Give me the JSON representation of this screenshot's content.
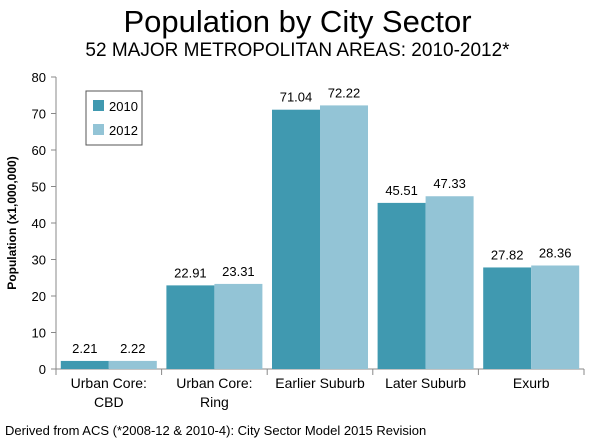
{
  "chart_data": {
    "type": "bar",
    "title": "Population by City Sector",
    "subtitle": "52 MAJOR METROPOLITAN AREAS: 2010-2012*",
    "ylabel": "Population (x1,000,000)",
    "xlabel": "",
    "categories": [
      [
        "Urban Core:",
        "CBD"
      ],
      [
        "Urban Core:",
        "Ring"
      ],
      [
        "Earlier Suburb"
      ],
      [
        "Later Suburb"
      ],
      [
        "Exurb"
      ]
    ],
    "series": [
      {
        "name": "2010",
        "color": "#4099B0",
        "values": [
          2.21,
          22.91,
          71.04,
          45.51,
          27.82
        ],
        "labels": [
          "2.21",
          "22.91",
          "71.04",
          "45.51",
          "27.82"
        ]
      },
      {
        "name": "2012",
        "color": "#93C4D6",
        "values": [
          2.22,
          23.31,
          72.22,
          47.33,
          28.36
        ],
        "labels": [
          "2.22",
          "23.31",
          "72.22",
          "47.33",
          "28.36"
        ]
      }
    ],
    "ylim": [
      0,
      80
    ],
    "yticks": [
      0,
      10,
      20,
      30,
      40,
      50,
      60,
      70,
      80
    ],
    "grid": false,
    "legend": "top-left"
  },
  "footer": "Derived from ACS (*2008-12 & 2010-4): City Sector Model 2015 Revision"
}
